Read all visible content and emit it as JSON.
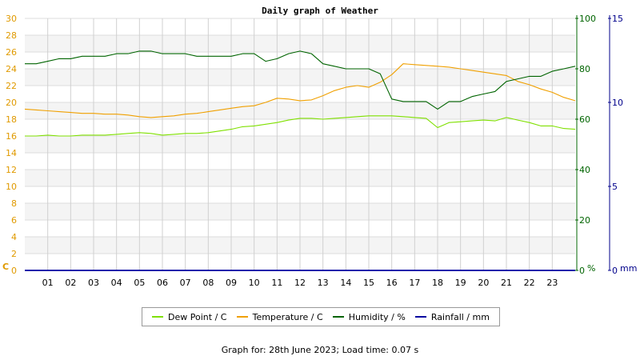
{
  "chart_data": {
    "type": "line",
    "title": "Daily graph of Weather",
    "x": [
      0,
      0.5,
      1,
      1.5,
      2,
      2.5,
      3,
      3.5,
      4,
      4.5,
      5,
      5.5,
      6,
      6.5,
      7,
      7.5,
      8,
      8.5,
      9,
      9.5,
      10,
      10.5,
      11,
      11.5,
      12,
      12.5,
      13,
      13.5,
      14,
      14.5,
      15,
      15.5,
      16,
      16.5,
      17,
      17.5,
      18,
      18.5,
      19,
      19.5,
      20,
      20.5,
      21,
      21.5,
      22,
      22.5,
      23,
      23.5,
      24
    ],
    "xticks": [
      "01",
      "02",
      "03",
      "04",
      "05",
      "06",
      "07",
      "08",
      "09",
      "10",
      "11",
      "12",
      "13",
      "14",
      "15",
      "16",
      "17",
      "18",
      "19",
      "20",
      "21",
      "22",
      "23"
    ],
    "xlim": [
      0,
      24
    ],
    "axes": {
      "left": {
        "label": "C",
        "ticks": [
          "30",
          "28",
          "26",
          "24",
          "22",
          "20",
          "18",
          "16",
          "14",
          "12",
          "10",
          "8",
          "6",
          "4",
          "2",
          "0"
        ],
        "range": [
          0,
          30
        ],
        "color": "#e09a00"
      },
      "right1": {
        "label": "%",
        "ticks": [
          "100",
          "80",
          "60",
          "40",
          "20",
          "0"
        ],
        "range": [
          0,
          100
        ],
        "color": "#006400"
      },
      "right2": {
        "label": "mm",
        "ticks": [
          "15",
          "10",
          "5",
          "0"
        ],
        "range": [
          0,
          15
        ],
        "color": "#00008b"
      }
    },
    "series": [
      {
        "name": "Dew Point / C",
        "axis": "left",
        "color": "#7fe000",
        "values": [
          16.0,
          16.0,
          16.1,
          16.0,
          16.0,
          16.1,
          16.1,
          16.1,
          16.2,
          16.3,
          16.4,
          16.3,
          16.1,
          16.2,
          16.3,
          16.3,
          16.4,
          16.6,
          16.8,
          17.1,
          17.2,
          17.4,
          17.6,
          17.9,
          18.1,
          18.1,
          18.0,
          18.1,
          18.2,
          18.3,
          18.4,
          18.4,
          18.4,
          18.3,
          18.2,
          18.1,
          17.0,
          17.6,
          17.7,
          17.8,
          17.9,
          17.8,
          18.2,
          17.9,
          17.6,
          17.2,
          17.2,
          16.9,
          16.8
        ]
      },
      {
        "name": "Temperature / C",
        "axis": "left",
        "color": "#f0a000",
        "values": [
          19.2,
          19.1,
          19.0,
          18.9,
          18.8,
          18.7,
          18.7,
          18.6,
          18.6,
          18.5,
          18.3,
          18.2,
          18.3,
          18.4,
          18.6,
          18.7,
          18.9,
          19.1,
          19.3,
          19.5,
          19.6,
          20.0,
          20.5,
          20.4,
          20.2,
          20.3,
          20.8,
          21.4,
          21.8,
          22.0,
          21.8,
          22.4,
          23.3,
          24.6,
          24.5,
          24.4,
          24.3,
          24.2,
          24.0,
          23.8,
          23.6,
          23.4,
          23.2,
          22.5,
          22.1,
          21.6,
          21.2,
          20.6,
          20.2
        ]
      },
      {
        "name": "Humidity / %",
        "axis": "right1",
        "color": "#006400",
        "values": [
          82,
          82,
          83,
          84,
          84,
          85,
          85,
          85,
          86,
          86,
          87,
          87,
          86,
          86,
          86,
          85,
          85,
          85,
          85,
          86,
          86,
          83,
          84,
          86,
          87,
          86,
          82,
          81,
          80,
          80,
          80,
          78,
          68,
          67,
          67,
          67,
          64,
          67,
          67,
          69,
          70,
          71,
          75,
          76,
          77,
          77,
          79,
          80,
          81
        ]
      },
      {
        "name": "Rainfall / mm",
        "axis": "right2",
        "color": "#0000a0",
        "values": [
          0,
          0,
          0,
          0,
          0,
          0,
          0,
          0,
          0,
          0,
          0,
          0,
          0,
          0,
          0,
          0,
          0,
          0,
          0,
          0,
          0,
          0,
          0,
          0,
          0,
          0,
          0,
          0,
          0,
          0,
          0,
          0,
          0,
          0,
          0,
          0,
          0,
          0,
          0,
          0,
          0,
          0,
          0,
          0,
          0,
          0,
          0,
          0,
          0
        ]
      }
    ],
    "grid": true,
    "legend": "bottom"
  },
  "footer": "Graph for: 28th June 2023; Load time: 0.07 s"
}
